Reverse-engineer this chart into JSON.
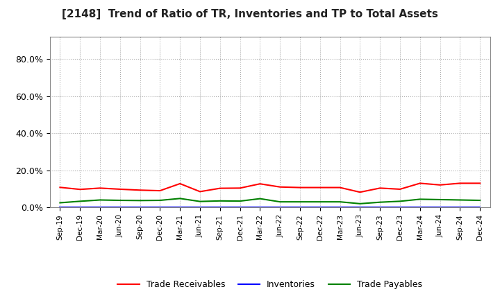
{
  "title": "[2148]  Trend of Ratio of TR, Inventories and TP to Total Assets",
  "x_labels": [
    "Sep-19",
    "Dec-19",
    "Mar-20",
    "Jun-20",
    "Sep-20",
    "Dec-20",
    "Mar-21",
    "Jun-21",
    "Sep-21",
    "Dec-21",
    "Mar-22",
    "Jun-22",
    "Sep-22",
    "Dec-22",
    "Mar-23",
    "Jun-23",
    "Sep-23",
    "Dec-23",
    "Mar-24",
    "Jun-24",
    "Sep-24",
    "Dec-24"
  ],
  "trade_receivables": [
    0.108,
    0.097,
    0.104,
    0.098,
    0.093,
    0.09,
    0.128,
    0.085,
    0.103,
    0.104,
    0.127,
    0.11,
    0.107,
    0.107,
    0.107,
    0.082,
    0.104,
    0.098,
    0.13,
    0.121,
    0.13,
    0.13
  ],
  "inventories": [
    0.002,
    0.002,
    0.002,
    0.002,
    0.002,
    0.002,
    0.002,
    0.002,
    0.002,
    0.002,
    0.002,
    0.002,
    0.002,
    0.002,
    0.002,
    0.002,
    0.002,
    0.002,
    0.002,
    0.002,
    0.002,
    0.002
  ],
  "trade_payables": [
    0.025,
    0.033,
    0.04,
    0.038,
    0.037,
    0.038,
    0.048,
    0.032,
    0.035,
    0.034,
    0.047,
    0.03,
    0.03,
    0.03,
    0.03,
    0.02,
    0.028,
    0.033,
    0.044,
    0.042,
    0.04,
    0.038
  ],
  "tr_color": "#FF0000",
  "inv_color": "#0000FF",
  "tp_color": "#008000",
  "ylim": [
    0.0,
    0.92
  ],
  "yticks": [
    0.0,
    0.2,
    0.4,
    0.6,
    0.8
  ],
  "ytick_labels": [
    "0.0%",
    "20.0%",
    "40.0%",
    "60.0%",
    "80.0%"
  ],
  "background_color": "#FFFFFF",
  "grid_color": "#AAAAAA",
  "legend_tr": "Trade Receivables",
  "legend_inv": "Inventories",
  "legend_tp": "Trade Payables"
}
